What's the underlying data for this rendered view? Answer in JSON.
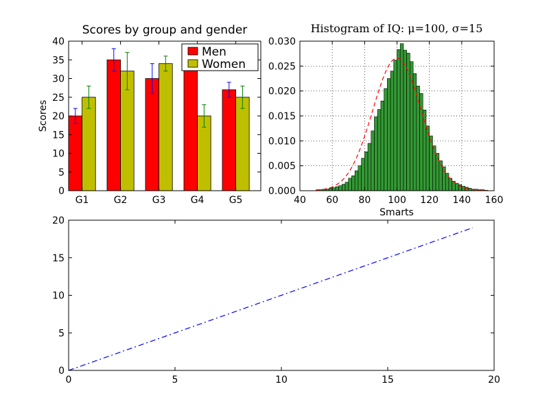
{
  "chart_data": [
    {
      "type": "bar",
      "title": "Scores by group and gender",
      "xlabel": "",
      "ylabel": "Scores",
      "ylim": [
        0,
        40
      ],
      "yticks": [
        0,
        5,
        10,
        15,
        20,
        25,
        30,
        35,
        40
      ],
      "categories": [
        "G1",
        "G2",
        "G3",
        "G4",
        "G5"
      ],
      "series": [
        {
          "name": "Men",
          "values": [
            20,
            35,
            30,
            35,
            27
          ],
          "errors": [
            2,
            3,
            4,
            1,
            2
          ],
          "color": "#ff0000",
          "error_color": "#0000ff"
        },
        {
          "name": "Women",
          "values": [
            25,
            32,
            34,
            20,
            25
          ],
          "errors": [
            3,
            5,
            2,
            3,
            3
          ],
          "color": "#bfbf00",
          "error_color": "#008000"
        }
      ],
      "legend_placement": "top-right",
      "grid": false
    },
    {
      "type": "bar",
      "title": "Histogram of IQ: μ=100, σ=15",
      "xlabel": "Smarts",
      "ylabel": "",
      "xlim": [
        40,
        160
      ],
      "ylim": [
        0,
        0.03
      ],
      "xticks": [
        40,
        60,
        80,
        100,
        120,
        140,
        160
      ],
      "yticks": [
        "0.000",
        "0.005",
        "0.010",
        "0.015",
        "0.020",
        "0.025",
        "0.030"
      ],
      "bin_width": 2,
      "x": [
        50,
        52,
        54,
        56,
        58,
        60,
        62,
        64,
        66,
        68,
        70,
        72,
        74,
        76,
        78,
        80,
        82,
        84,
        86,
        88,
        90,
        92,
        94,
        96,
        98,
        100,
        102,
        104,
        106,
        108,
        110,
        112,
        114,
        116,
        118,
        120,
        122,
        124,
        126,
        128,
        130,
        132,
        134,
        136,
        138,
        140,
        142,
        144,
        146,
        148,
        150,
        152,
        154
      ],
      "values": [
        0.0002,
        0.0002,
        0.0003,
        0.0003,
        0.0005,
        0.0006,
        0.0008,
        0.001,
        0.0013,
        0.0017,
        0.0025,
        0.003,
        0.004,
        0.005,
        0.0065,
        0.0078,
        0.0095,
        0.012,
        0.0148,
        0.0163,
        0.018,
        0.0205,
        0.0225,
        0.024,
        0.0262,
        0.0283,
        0.0295,
        0.0282,
        0.0276,
        0.0259,
        0.0235,
        0.021,
        0.0195,
        0.0162,
        0.013,
        0.011,
        0.009,
        0.0075,
        0.006,
        0.0048,
        0.0035,
        0.0025,
        0.0019,
        0.0015,
        0.0012,
        0.0009,
        0.0007,
        0.0005,
        0.0003,
        0.0003,
        0.0002,
        0.0002,
        0.0001
      ],
      "bar_color": "#339933",
      "curve": {
        "style": "dashed",
        "color": "#ff0000",
        "mu": 100,
        "sigma": 15
      },
      "grid": true
    },
    {
      "type": "line",
      "title": "",
      "xlabel": "",
      "ylabel": "",
      "xlim": [
        0,
        20
      ],
      "ylim": [
        0,
        20
      ],
      "xticks": [
        0,
        5,
        10,
        15,
        20
      ],
      "yticks": [
        0,
        5,
        10,
        15,
        20
      ],
      "series": [
        {
          "x": [
            0,
            1,
            2,
            3,
            4,
            5,
            6,
            7,
            8,
            9,
            10,
            11,
            12,
            13,
            14,
            15,
            16,
            17,
            18,
            19
          ],
          "values": [
            0,
            1,
            2,
            3,
            4,
            5,
            6,
            7,
            8,
            9,
            10,
            11,
            12,
            13,
            14,
            15,
            16,
            17,
            18,
            19
          ],
          "color": "#0000ff",
          "style": "dash-dot"
        }
      ],
      "grid": false
    }
  ]
}
